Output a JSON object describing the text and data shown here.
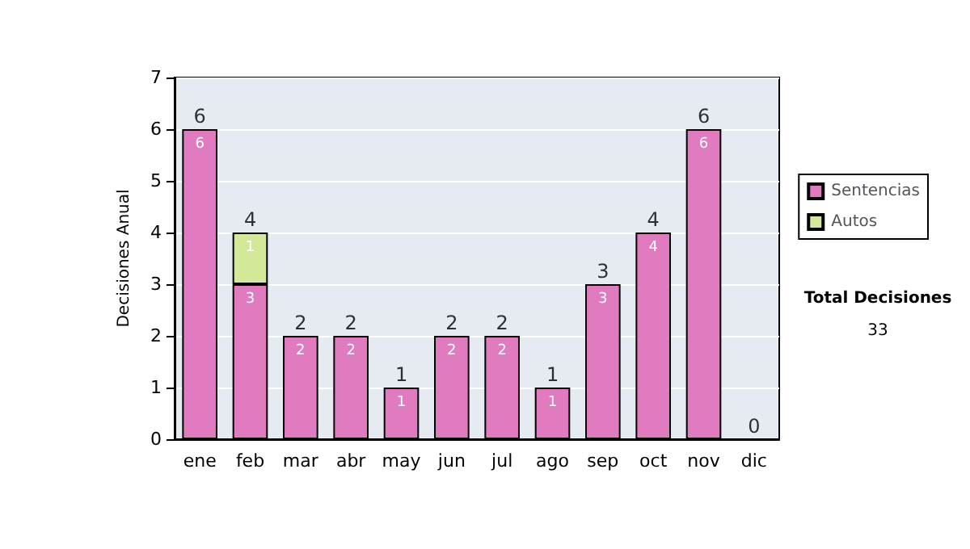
{
  "chart_data": {
    "type": "bar",
    "stacked": true,
    "ylabel": "Decisiones Anual",
    "categories": [
      "ene",
      "feb",
      "mar",
      "abr",
      "may",
      "jun",
      "jul",
      "ago",
      "sep",
      "oct",
      "nov",
      "dic"
    ],
    "series": [
      {
        "name": "Sentencias",
        "color": "#e07bc0",
        "values": [
          6,
          3,
          2,
          2,
          1,
          2,
          2,
          1,
          3,
          4,
          6,
          0
        ],
        "value_labels": [
          "6",
          "3",
          "2",
          "2",
          "1",
          "2",
          "2",
          "1",
          "3",
          "4",
          "6",
          null
        ]
      },
      {
        "name": "Autos",
        "color": "#d4e89a",
        "values": [
          null,
          1,
          null,
          null,
          null,
          null,
          null,
          null,
          null,
          null,
          null,
          null
        ],
        "value_labels": [
          null,
          "1",
          null,
          null,
          null,
          null,
          null,
          null,
          null,
          null,
          null,
          null
        ]
      }
    ],
    "totals": [
      "6",
      "4",
      "2",
      "2",
      "1",
      "2",
      "2",
      "1",
      "3",
      "4",
      "6",
      "0"
    ],
    "ylim": [
      0,
      7
    ],
    "yticks": [
      0,
      1,
      2,
      3,
      4,
      5,
      6,
      7
    ],
    "grid": "y",
    "legend": "right",
    "annotations": [
      "Total Decisiones",
      "33"
    ]
  }
}
